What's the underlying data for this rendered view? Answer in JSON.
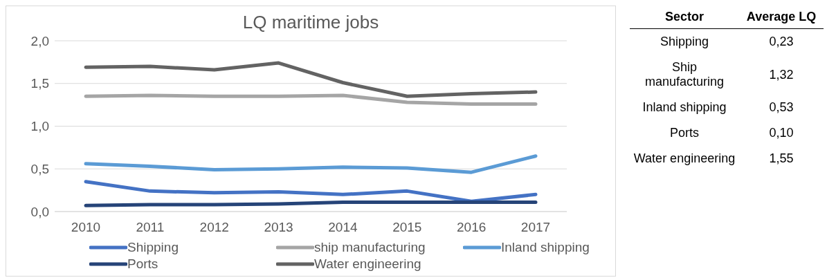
{
  "chart_data": [
    {
      "type": "line",
      "title": "LQ maritime jobs",
      "categories": [
        "2010",
        "2011",
        "2012",
        "2013",
        "2014",
        "2015",
        "2016",
        "2017"
      ],
      "series": [
        {
          "name": "Shipping",
          "color": "#4472c4",
          "values": [
            0.35,
            0.24,
            0.22,
            0.23,
            0.2,
            0.24,
            0.12,
            0.2
          ]
        },
        {
          "name": "ship manufacturing",
          "color": "#a5a5a5",
          "values": [
            1.35,
            1.36,
            1.35,
            1.35,
            1.36,
            1.28,
            1.26,
            1.26
          ]
        },
        {
          "name": "Inland shipping",
          "color": "#5b9bd5",
          "values": [
            0.56,
            0.53,
            0.49,
            0.5,
            0.52,
            0.51,
            0.46,
            0.65
          ]
        },
        {
          "name": "Ports",
          "color": "#264478",
          "values": [
            0.07,
            0.08,
            0.08,
            0.09,
            0.11,
            0.11,
            0.11,
            0.11
          ]
        },
        {
          "name": "Water engineering",
          "color": "#636363",
          "values": [
            1.69,
            1.7,
            1.66,
            1.74,
            1.51,
            1.35,
            1.38,
            1.4
          ]
        }
      ],
      "ylim": [
        0,
        2
      ],
      "yticks": [
        {
          "value": 0,
          "label": "0,0"
        },
        {
          "value": 0.5,
          "label": "0,5"
        },
        {
          "value": 1,
          "label": "1,0"
        },
        {
          "value": 1.5,
          "label": "1,5"
        },
        {
          "value": 2,
          "label": "2,0"
        }
      ],
      "grid": "y",
      "legend": "bottom",
      "marker": "none",
      "line_style": "solid"
    },
    {
      "type": "other",
      "xlabel": "Sector",
      "ylabel": "Average LQ",
      "categories": [
        "Shipping",
        "Ship manufacturing",
        "Inland shipping",
        "Ports",
        "Water engineering"
      ],
      "value_labels": [
        "0,23",
        "1,32",
        "0,53",
        "0,10",
        "1,55"
      ]
    }
  ]
}
